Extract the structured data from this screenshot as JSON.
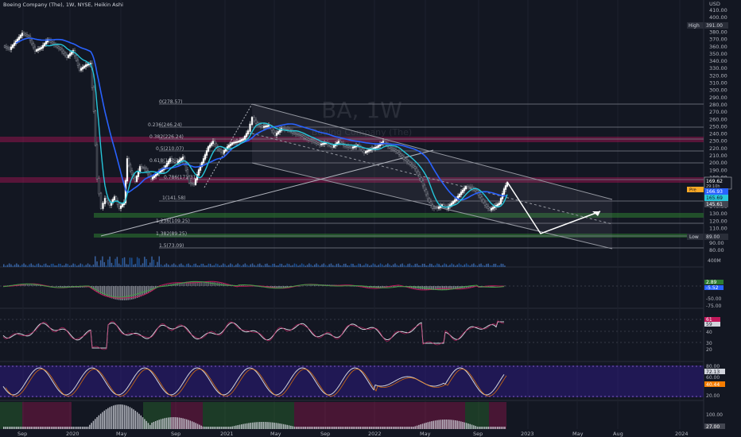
{
  "header": {
    "title": "Boeing Company (The), 1W, NYSE, Heikin Ashi"
  },
  "watermark": {
    "symbol": "BA, 1W",
    "subtitle": "Boeing Company (The)"
  },
  "price_axis": {
    "labels": [
      "USD",
      "410.00",
      "400.00",
      "390.00",
      "380.00",
      "370.00",
      "360.00",
      "350.00",
      "340.00",
      "330.00",
      "320.00",
      "310.00",
      "300.00",
      "290.00",
      "280.00",
      "270.00",
      "260.00",
      "250.00",
      "240.00",
      "230.00",
      "220.00",
      "210.00",
      "200.00",
      "190.00",
      "180.00",
      "170.00",
      "160.00",
      "150.00",
      "140.00",
      "130.00",
      "120.00",
      "110.00",
      "100.00",
      "90.00",
      "80.00"
    ],
    "tags": {
      "high_label": "High",
      "high_value": "391.00",
      "low_label": "Low",
      "low_value": "89.00",
      "price_a": "169.62",
      "price_a_sub": "29:10h",
      "price_b": "166.93",
      "price_c": "165.69",
      "price_d": "145.61",
      "prev_label": "Pre"
    }
  },
  "fib": {
    "labels": [
      "0(278.57)",
      "0.236(246.24)",
      "0.382(226.24)",
      "0.5(210.07)",
      "0.618(194.32)",
      "0.786(171.31)",
      "1(141.58)",
      "1.236(109.25)",
      "1.382(89.25)",
      "1.5(73.09)"
    ]
  },
  "volume_pane": {
    "label": "400M"
  },
  "macd_pane": {
    "labels": [
      "2.89",
      "-5.52",
      "-50.00",
      "-75.00"
    ]
  },
  "rsi_pane": {
    "labels": [
      "61",
      "59",
      "40",
      "30",
      "20"
    ]
  },
  "stoch_pane": {
    "labels": [
      "80.00",
      "72.13",
      "60.00",
      "40.44",
      "20.00"
    ]
  },
  "hist_pane": {
    "labels": [
      "100.00",
      "27.00"
    ]
  },
  "time_axis": {
    "labels": [
      "Sep",
      "2020",
      "May",
      "Sep",
      "2021",
      "May",
      "Sep",
      "2022",
      "May",
      "Sep",
      "2023",
      "May",
      "Aug",
      "2024"
    ]
  },
  "colors": {
    "background": "#131722",
    "grid": "#1f2331",
    "up_candle": "#ffffff",
    "down_candle": "#8a8d97",
    "ma_blue": "#2962ff",
    "ma_teal": "#26c6da",
    "red_zone": "#ad1457",
    "green_zone": "#2e7d32",
    "purple_zone": "#311b92"
  }
}
